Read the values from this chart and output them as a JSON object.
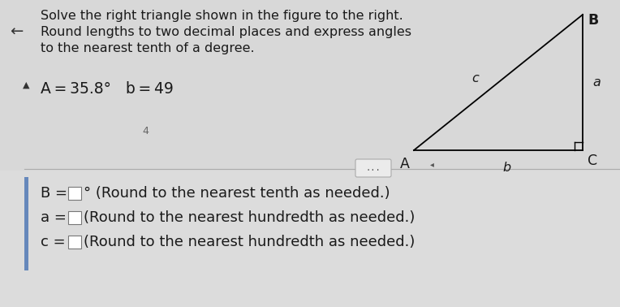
{
  "bg_color": "#dcdcdc",
  "title_line1": "Solve the right triangle shown in the figure to the right.",
  "title_line2": "Round lengths to two decimal places and express angles",
  "title_line3": "to the nearest tenth of a degree.",
  "given": "A = 35.8°   b = 49",
  "label_A": "A",
  "label_B": "B",
  "label_C": "C",
  "label_a": "a",
  "label_b": "b",
  "label_c": "c",
  "divider_label": "...",
  "suffix1": "° (Round to the nearest tenth as needed.)",
  "suffix2": "(Round to the nearest hundredth as needed.)",
  "suffix3": "(Round to the nearest hundredth as needed.)",
  "text_color": "#1a1a1a",
  "box_color": "#ffffff",
  "divider_color": "#aaaaaa",
  "font_size_title": 11.5,
  "font_size_given": 13.5,
  "font_size_answer": 13,
  "font_size_triangle": 11.5
}
